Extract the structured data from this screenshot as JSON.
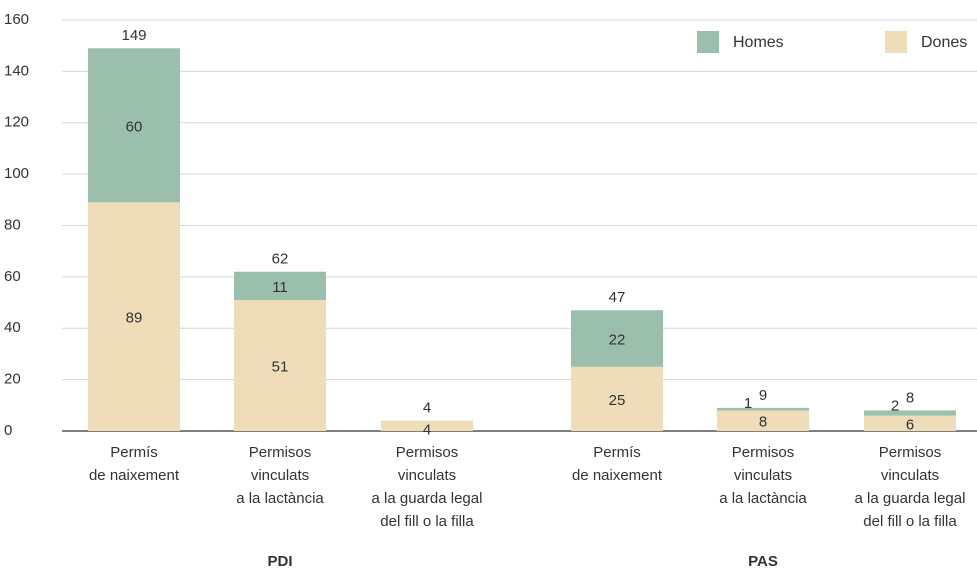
{
  "chart_data": {
    "type": "stacked_bar",
    "categories": [
      [
        "Permís",
        "de naixement"
      ],
      [
        "Permisos",
        "vinculats",
        "a la lactància"
      ],
      [
        "Permisos",
        "vinculats",
        "a la guarda legal",
        "del fill o la filla"
      ],
      [
        "Permís",
        "de naixement"
      ],
      [
        "Permisos",
        "vinculats",
        "a la lactància"
      ],
      [
        "Permisos",
        "vinculats",
        "a la guarda legal",
        "del fill o la filla"
      ]
    ],
    "groups": [
      "PDI",
      "PAS"
    ],
    "series": [
      {
        "name": "Dones",
        "color": "#efdcb8",
        "values": [
          89,
          51,
          4,
          25,
          8,
          6
        ]
      },
      {
        "name": "Homes",
        "color": "#9bbfad",
        "values": [
          60,
          11,
          0,
          22,
          1,
          2
        ],
        "value_labels": [
          "60",
          "11",
          null,
          "22",
          "1",
          "2"
        ]
      }
    ],
    "totals": [
      149,
      62,
      4,
      47,
      9,
      8
    ],
    "ylim": [
      0,
      160
    ],
    "yticks": [
      0,
      20,
      40,
      60,
      80,
      100,
      120,
      140,
      160
    ],
    "grid": true,
    "legend": "top-right"
  }
}
